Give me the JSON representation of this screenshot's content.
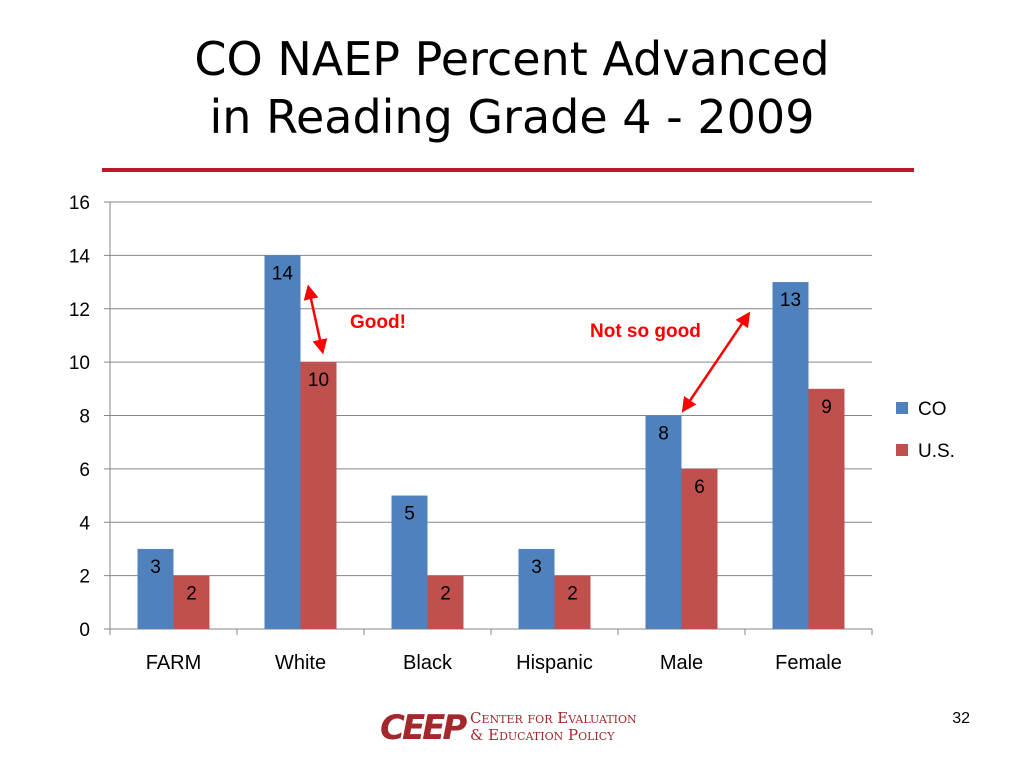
{
  "slide": {
    "title_line1": "CO NAEP Percent Advanced",
    "title_line2": "in Reading Grade 4 - 2009",
    "page_number": "32",
    "logo_mark": "CEEP",
    "logo_line1": "Center for Evaluation",
    "logo_line2": "& Education Policy",
    "accent_color": "#c0172b"
  },
  "chart_data": {
    "type": "bar",
    "categories": [
      "FARM",
      "White",
      "Black",
      "Hispanic",
      "Male",
      "Female"
    ],
    "series": [
      {
        "name": "CO",
        "values": [
          3,
          14,
          5,
          3,
          8,
          13
        ],
        "color": "#4f81bd"
      },
      {
        "name": "U.S.",
        "values": [
          2,
          10,
          2,
          2,
          6,
          9
        ],
        "color": "#c0504d"
      }
    ],
    "title": "",
    "xlabel": "",
    "ylabel": "",
    "ylim": [
      0,
      16
    ],
    "yticks": [
      0,
      2,
      4,
      6,
      8,
      10,
      12,
      14,
      16
    ],
    "grid": true,
    "legend": "right",
    "data_labels": true,
    "annotations": [
      {
        "text": "Good!",
        "color": "#ff0000",
        "from": {
          "category": "White",
          "value": 12.8
        },
        "to": {
          "category": "White",
          "value": 10.4
        }
      },
      {
        "text": "Not so good",
        "color": "#ff0000",
        "from": {
          "category": "Male",
          "value": 8.2
        },
        "to": {
          "category": "Female",
          "value": 11.8
        }
      }
    ]
  }
}
